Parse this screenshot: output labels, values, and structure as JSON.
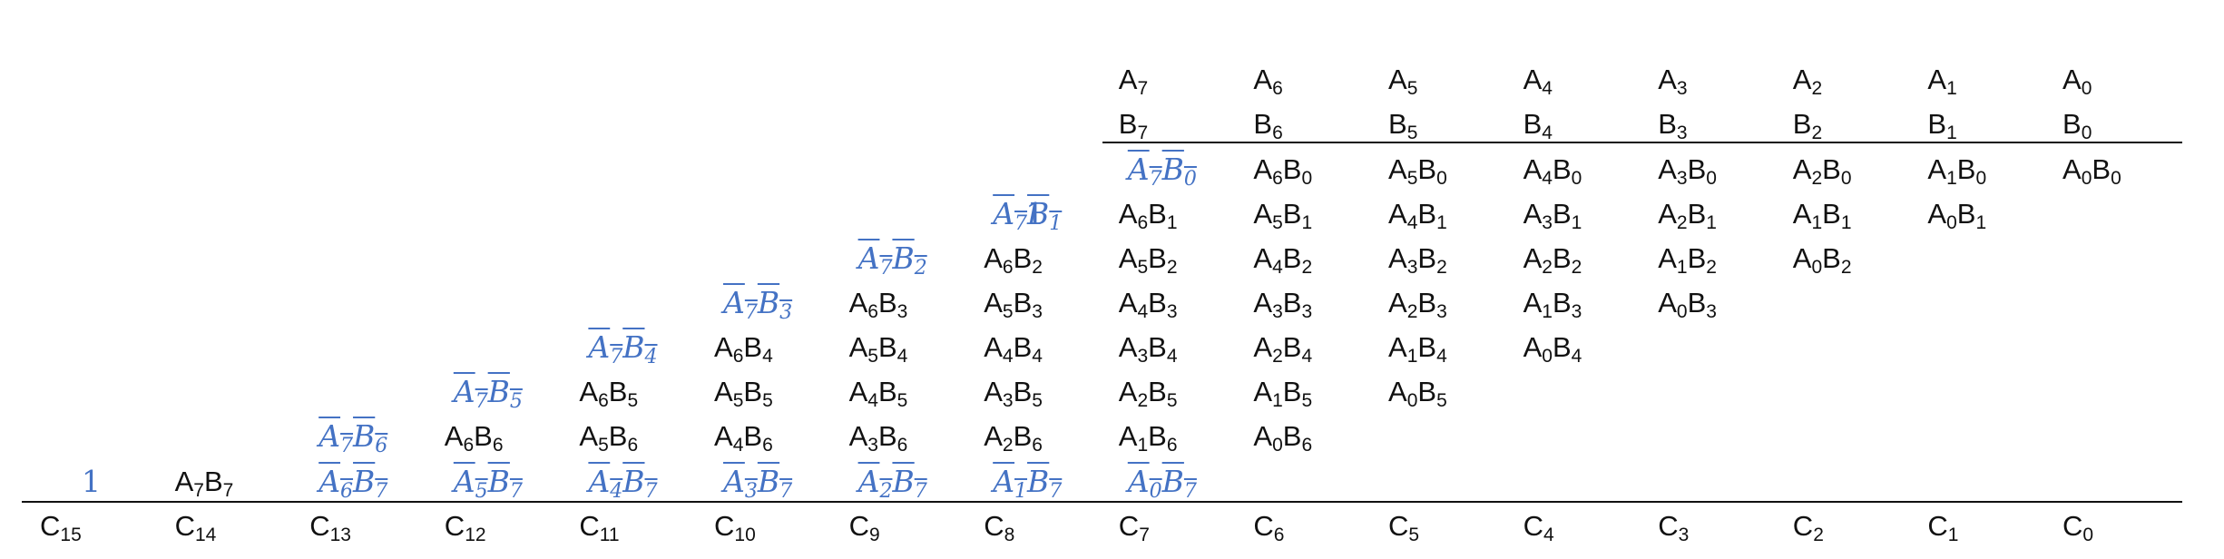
{
  "operand_a": [
    "A7",
    "A6",
    "A5",
    "A4",
    "A3",
    "A2",
    "A1",
    "A0"
  ],
  "operand_b": [
    "B7",
    "B6",
    "B5",
    "B4",
    "B3",
    "B2",
    "B1",
    "B0"
  ],
  "partial_product_rows": [
    {
      "lead_one": "",
      "terms": [
        {
          "text": "A7B0",
          "inverted": true
        },
        {
          "text": "A6B0",
          "inverted": false
        },
        {
          "text": "A5B0",
          "inverted": false
        },
        {
          "text": "A4B0",
          "inverted": false
        },
        {
          "text": "A3B0",
          "inverted": false
        },
        {
          "text": "A2B0",
          "inverted": false
        },
        {
          "text": "A1B0",
          "inverted": false
        },
        {
          "text": "A0B0",
          "inverted": false
        }
      ]
    },
    {
      "lead_one": "1",
      "terms": [
        {
          "text": "A7B1",
          "inverted": true
        },
        {
          "text": "A6B1",
          "inverted": false
        },
        {
          "text": "A5B1",
          "inverted": false
        },
        {
          "text": "A4B1",
          "inverted": false
        },
        {
          "text": "A3B1",
          "inverted": false
        },
        {
          "text": "A2B1",
          "inverted": false
        },
        {
          "text": "A1B1",
          "inverted": false
        },
        {
          "text": "A0B1",
          "inverted": false
        }
      ]
    },
    {
      "lead_one": "",
      "terms": [
        {
          "text": "A7B2",
          "inverted": true
        },
        {
          "text": "A6B2",
          "inverted": false
        },
        {
          "text": "A5B2",
          "inverted": false
        },
        {
          "text": "A4B2",
          "inverted": false
        },
        {
          "text": "A3B2",
          "inverted": false
        },
        {
          "text": "A2B2",
          "inverted": false
        },
        {
          "text": "A1B2",
          "inverted": false
        },
        {
          "text": "A0B2",
          "inverted": false
        }
      ]
    },
    {
      "lead_one": "",
      "terms": [
        {
          "text": "A7B3",
          "inverted": true
        },
        {
          "text": "A6B3",
          "inverted": false
        },
        {
          "text": "A5B3",
          "inverted": false
        },
        {
          "text": "A4B3",
          "inverted": false
        },
        {
          "text": "A3B3",
          "inverted": false
        },
        {
          "text": "A2B3",
          "inverted": false
        },
        {
          "text": "A1B3",
          "inverted": false
        },
        {
          "text": "A0B3",
          "inverted": false
        }
      ]
    },
    {
      "lead_one": "",
      "terms": [
        {
          "text": "A7B4",
          "inverted": true
        },
        {
          "text": "A6B4",
          "inverted": false
        },
        {
          "text": "A5B4",
          "inverted": false
        },
        {
          "text": "A4B4",
          "inverted": false
        },
        {
          "text": "A3B4",
          "inverted": false
        },
        {
          "text": "A2B4",
          "inverted": false
        },
        {
          "text": "A1B4",
          "inverted": false
        },
        {
          "text": "A0B4",
          "inverted": false
        }
      ]
    },
    {
      "lead_one": "",
      "terms": [
        {
          "text": "A7B5",
          "inverted": true
        },
        {
          "text": "A6B5",
          "inverted": false
        },
        {
          "text": "A5B5",
          "inverted": false
        },
        {
          "text": "A4B5",
          "inverted": false
        },
        {
          "text": "A3B5",
          "inverted": false
        },
        {
          "text": "A2B5",
          "inverted": false
        },
        {
          "text": "A1B5",
          "inverted": false
        },
        {
          "text": "A0B5",
          "inverted": false
        }
      ]
    },
    {
      "lead_one": "",
      "terms": [
        {
          "text": "A7B6",
          "inverted": true
        },
        {
          "text": "A6B6",
          "inverted": false
        },
        {
          "text": "A5B6",
          "inverted": false
        },
        {
          "text": "A4B6",
          "inverted": false
        },
        {
          "text": "A3B6",
          "inverted": false
        },
        {
          "text": "A2B6",
          "inverted": false
        },
        {
          "text": "A1B6",
          "inverted": false
        },
        {
          "text": "A0B6",
          "inverted": false
        }
      ]
    },
    {
      "lead_one": "1",
      "terms": [
        {
          "text": "A7B7",
          "inverted": false
        },
        {
          "text": "A6B7",
          "inverted": true
        },
        {
          "text": "A5B7",
          "inverted": true
        },
        {
          "text": "A4B7",
          "inverted": true
        },
        {
          "text": "A3B7",
          "inverted": true
        },
        {
          "text": "A2B7",
          "inverted": true
        },
        {
          "text": "A1B7",
          "inverted": true
        },
        {
          "text": "A0B7",
          "inverted": true
        }
      ]
    }
  ],
  "result": [
    "C15",
    "C14",
    "C13",
    "C12",
    "C11",
    "C10",
    "C9",
    "C8",
    "C7",
    "C6",
    "C5",
    "C4",
    "C3",
    "C2",
    "C1",
    "C0"
  ],
  "colors": {
    "text": "#111111",
    "complemented_term": "#4472c4",
    "line": "#111111"
  }
}
